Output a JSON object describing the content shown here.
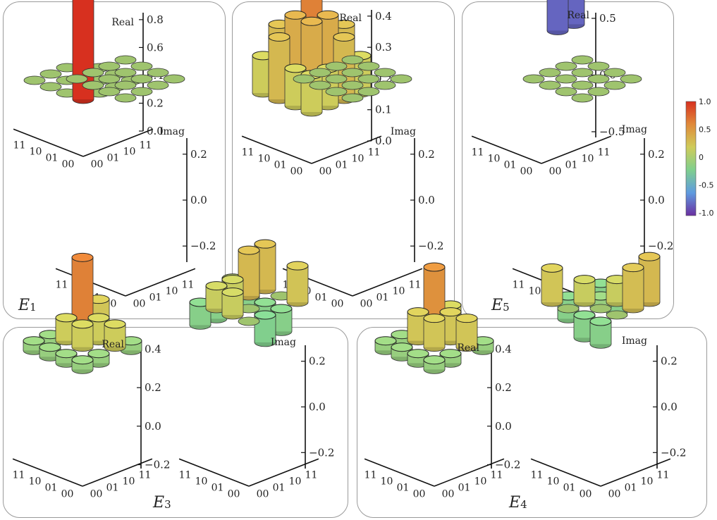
{
  "panels": [
    {
      "label": "E",
      "sub": "1"
    },
    {
      "label": "E",
      "sub": "2"
    },
    {
      "label": "E",
      "sub": "5"
    },
    {
      "label": "E",
      "sub": "3"
    },
    {
      "label": "E",
      "sub": "4"
    }
  ],
  "axis_names": {
    "real": "Real",
    "imag": "Imag"
  },
  "basis_labels": [
    "11",
    "10",
    "01",
    "00"
  ],
  "colorbar": {
    "ticks": [
      "1.0",
      "0.5",
      "0",
      "-0.5",
      "-1.0"
    ],
    "colors": [
      "#d7301f",
      "#e08a3a",
      "#cfcc5a",
      "#7fcf8e",
      "#5f9be0",
      "#6a2fa0"
    ]
  },
  "chart_data": [
    {
      "type": "bar3d",
      "name": "E1",
      "basis": [
        "00",
        "01",
        "10",
        "11"
      ],
      "real": {
        "ticks": [
          0.0,
          0.2,
          0.4,
          0.6,
          0.8
        ],
        "range": [
          0,
          0.85
        ],
        "values": [
          [
            0.8,
            0,
            0,
            0
          ],
          [
            0,
            0,
            0,
            0
          ],
          [
            0,
            0,
            0,
            0
          ],
          [
            0,
            0,
            0,
            0
          ]
        ]
      },
      "imag": {
        "ticks": [
          -0.2,
          0.0,
          0.2
        ],
        "range": [
          -0.27,
          0.27
        ],
        "values": [
          [
            0,
            0,
            0,
            0
          ],
          [
            0,
            0,
            0,
            0
          ],
          [
            0,
            0,
            0,
            0
          ],
          [
            0,
            0,
            0,
            0
          ]
        ]
      }
    },
    {
      "type": "bar3d",
      "name": "E2",
      "basis": [
        "00",
        "01",
        "10",
        "11"
      ],
      "real": {
        "ticks": [
          0.0,
          0.1,
          0.2,
          0.3,
          0.4
        ],
        "range": [
          0,
          0.42
        ],
        "values": [
          [
            0.12,
            0.12,
            0.2,
            0.12
          ],
          [
            0.12,
            0.25,
            0.25,
            0.2
          ],
          [
            0.2,
            0.25,
            0.4,
            0.2
          ],
          [
            0.12,
            0.2,
            0.2,
            0.12
          ]
        ]
      },
      "imag": {
        "ticks": [
          -0.2,
          0.0,
          0.2
        ],
        "range": [
          -0.27,
          0.27
        ],
        "values": [
          [
            0,
            0,
            0,
            0
          ],
          [
            0,
            0,
            0,
            0
          ],
          [
            0,
            0,
            0,
            0
          ],
          [
            0,
            0,
            0,
            0
          ]
        ]
      }
    },
    {
      "type": "bar3d",
      "name": "E5",
      "basis": [
        "00",
        "01",
        "10",
        "11"
      ],
      "real": {
        "ticks": [
          -0.5,
          0.0,
          0.5
        ],
        "range": [
          -0.55,
          0.55
        ],
        "values": [
          [
            0,
            -0.5,
            -0.5,
            0
          ],
          [
            0.5,
            0,
            0,
            0.5
          ],
          [
            0,
            0,
            0,
            0
          ],
          [
            0,
            0,
            0,
            0
          ]
        ]
      },
      "imag": {
        "ticks": [
          -0.2,
          0.0,
          0.2
        ],
        "range": [
          -0.27,
          0.27
        ],
        "values": [
          [
            0,
            0,
            0,
            0
          ],
          [
            0,
            0,
            0,
            0
          ],
          [
            0,
            0,
            0,
            0
          ],
          [
            0,
            0,
            0,
            0
          ]
        ]
      }
    },
    {
      "type": "bar3d",
      "name": "E3",
      "basis": [
        "00",
        "01",
        "10",
        "11"
      ],
      "real": {
        "ticks": [
          -0.2,
          0.0,
          0.2,
          0.4
        ],
        "range": [
          -0.22,
          0.42
        ],
        "values": [
          [
            -0.05,
            -0.05,
            0.12,
            -0.05
          ],
          [
            -0.05,
            0.12,
            0.12,
            -0.05
          ],
          [
            -0.05,
            0.12,
            0.4,
            0.15
          ],
          [
            -0.05,
            -0.05,
            -0.05,
            -0.05
          ]
        ]
      },
      "imag": {
        "ticks": [
          -0.2,
          0.0,
          0.2
        ],
        "range": [
          -0.27,
          0.27
        ],
        "values": [
          [
            0,
            -0.12,
            -0.1,
            0.16
          ],
          [
            0.1,
            0,
            -0.1,
            0
          ],
          [
            0.1,
            0.1,
            0.2,
            0.2
          ],
          [
            -0.1,
            -0.1,
            0.05,
            -0.1
          ]
        ]
      }
    },
    {
      "type": "bar3d",
      "name": "E4",
      "basis": [
        "00",
        "01",
        "10",
        "11"
      ],
      "real": {
        "ticks": [
          -0.2,
          0.0,
          0.2,
          0.4
        ],
        "range": [
          -0.22,
          0.42
        ],
        "values": [
          [
            -0.05,
            -0.05,
            0.15,
            -0.05
          ],
          [
            -0.05,
            0.15,
            0.15,
            -0.05
          ],
          [
            -0.05,
            0.15,
            0.35,
            0.12
          ],
          [
            -0.05,
            -0.05,
            -0.05,
            -0.05
          ]
        ]
      },
      "imag": {
        "ticks": [
          -0.2,
          0.0,
          0.2
        ],
        "range": [
          -0.27,
          0.27
        ],
        "values": [
          [
            -0.1,
            0,
            0.18,
            0.2
          ],
          [
            -0.1,
            0,
            0.1,
            0.1
          ],
          [
            0,
            0.1,
            -0.05,
            -0.1
          ],
          [
            0.15,
            -0.1,
            0,
            -0.1
          ]
        ]
      }
    }
  ]
}
